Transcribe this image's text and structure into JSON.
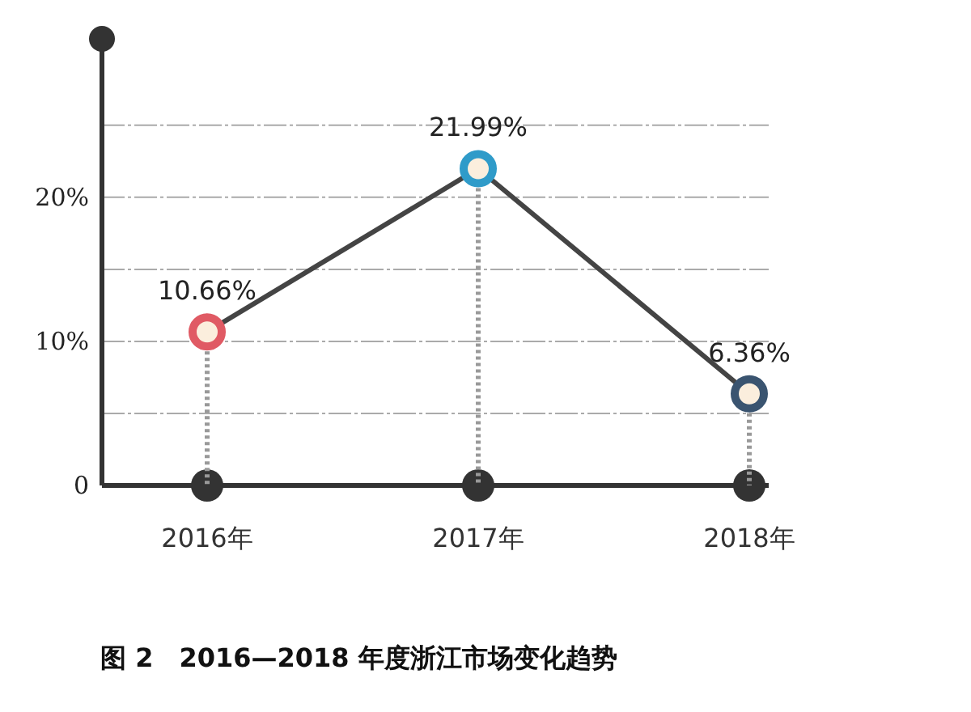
{
  "chart_data": {
    "type": "line",
    "title": "图 2　2016—2018 年度浙江市场变化趋势",
    "categories": [
      "2016年",
      "2017年",
      "2018年"
    ],
    "series": [
      {
        "color": "#444444",
        "colors": [
          "#e05a64",
          "#2f9bc9",
          "#3a5470"
        ],
        "values": [
          10.66,
          21.99,
          6.36
        ]
      }
    ],
    "value_labels": [
      "10.66%",
      "21.99%",
      "6.36%"
    ],
    "ylim": [
      0,
      31
    ],
    "yticks": [
      {
        "value": 0,
        "label": "0"
      },
      {
        "value": 5,
        "label": null
      },
      {
        "value": 10,
        "label": "10%"
      },
      {
        "value": 15,
        "label": null
      },
      {
        "value": 20,
        "label": "20%"
      },
      {
        "value": 25,
        "label": null
      }
    ],
    "grid": "y",
    "marker": "circle",
    "line_style": "solid"
  }
}
